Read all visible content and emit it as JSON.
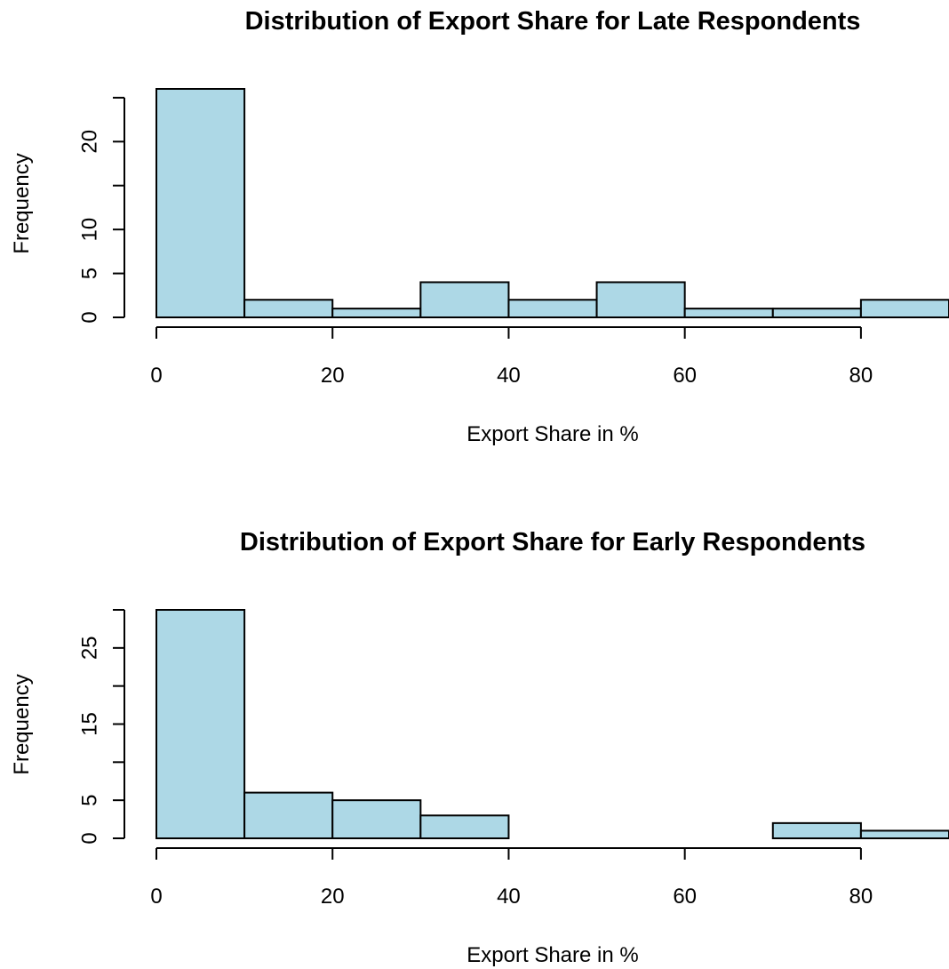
{
  "chart_data": [
    {
      "type": "bar",
      "title": "Distribution of Export Share for Late Respondents",
      "xlabel": "Export Share in %",
      "ylabel": "Frequency",
      "bins": [
        [
          0,
          10
        ],
        [
          10,
          20
        ],
        [
          20,
          30
        ],
        [
          30,
          40
        ],
        [
          40,
          50
        ],
        [
          50,
          60
        ],
        [
          60,
          70
        ],
        [
          70,
          80
        ],
        [
          80,
          90
        ]
      ],
      "values": [
        26,
        2,
        1,
        4,
        2,
        4,
        1,
        1,
        2
      ],
      "xlim": [
        0,
        90
      ],
      "ylim": [
        0,
        26
      ],
      "x_ticks": [
        0,
        20,
        40,
        60,
        80
      ],
      "y_ticks": [
        0,
        5,
        10,
        15,
        20,
        25
      ],
      "y_tick_labels": [
        "0",
        "5",
        "10",
        "",
        "20",
        ""
      ],
      "bar_color": "#add8e6",
      "grid": false
    },
    {
      "type": "bar",
      "title": "Distribution of Export Share for Early Respondents",
      "xlabel": "Export Share in %",
      "ylabel": "Frequency",
      "bins": [
        [
          0,
          10
        ],
        [
          10,
          20
        ],
        [
          20,
          30
        ],
        [
          30,
          40
        ],
        [
          40,
          50
        ],
        [
          50,
          60
        ],
        [
          60,
          70
        ],
        [
          70,
          80
        ],
        [
          80,
          90
        ]
      ],
      "values": [
        30,
        6,
        5,
        3,
        0,
        0,
        0,
        2,
        1
      ],
      "xlim": [
        0,
        90
      ],
      "ylim": [
        0,
        30
      ],
      "x_ticks": [
        0,
        20,
        40,
        60,
        80
      ],
      "y_ticks": [
        0,
        5,
        10,
        15,
        20,
        25,
        30
      ],
      "y_tick_labels": [
        "0",
        "5",
        "",
        "15",
        "",
        "25",
        ""
      ],
      "bar_color": "#add8e6",
      "grid": false
    }
  ]
}
